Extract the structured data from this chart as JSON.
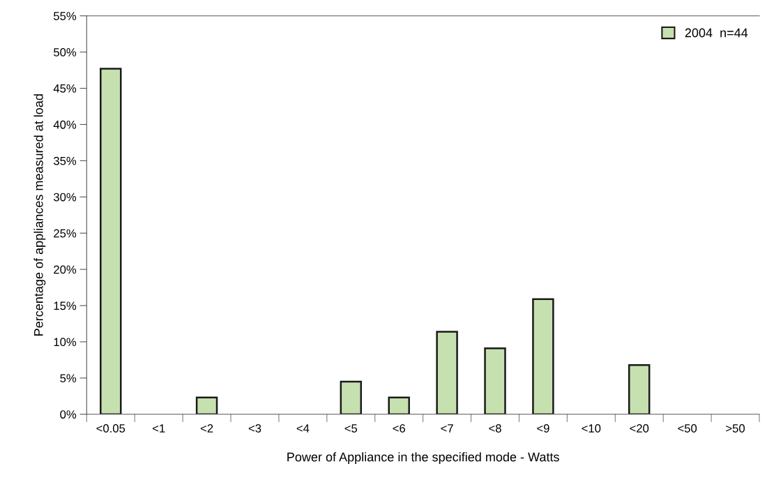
{
  "chart_data": {
    "type": "bar",
    "xlabel": "Power of Appliance in the specified mode - Watts",
    "ylabel": "Percentage of appliances measured at load",
    "categories": [
      "<0.05",
      "<1",
      "<2",
      "<3",
      "<4",
      "<5",
      "<6",
      "<7",
      "<8",
      "<9",
      "<10",
      "<20",
      "<50",
      ">50"
    ],
    "series": [
      {
        "name": "2004  n=44",
        "color": "#c6e0b0",
        "values": [
          47.7,
          0,
          2.3,
          0,
          0,
          4.5,
          2.3,
          11.4,
          9.1,
          15.9,
          0,
          6.8,
          0,
          0
        ]
      }
    ],
    "ylim": [
      0,
      55
    ],
    "yticks": [
      {
        "value": 0,
        "label": "0%"
      },
      {
        "value": 5,
        "label": "5%"
      },
      {
        "value": 10,
        "label": "10%"
      },
      {
        "value": 15,
        "label": "15%"
      },
      {
        "value": 20,
        "label": "20%"
      },
      {
        "value": 25,
        "label": "25%"
      },
      {
        "value": 30,
        "label": "30%"
      },
      {
        "value": 35,
        "label": "35%"
      },
      {
        "value": 40,
        "label": "40%"
      },
      {
        "value": 45,
        "label": "45%"
      },
      {
        "value": 50,
        "label": "50%"
      },
      {
        "value": 55,
        "label": "55%"
      }
    ],
    "grid": false,
    "legend": "top right"
  }
}
